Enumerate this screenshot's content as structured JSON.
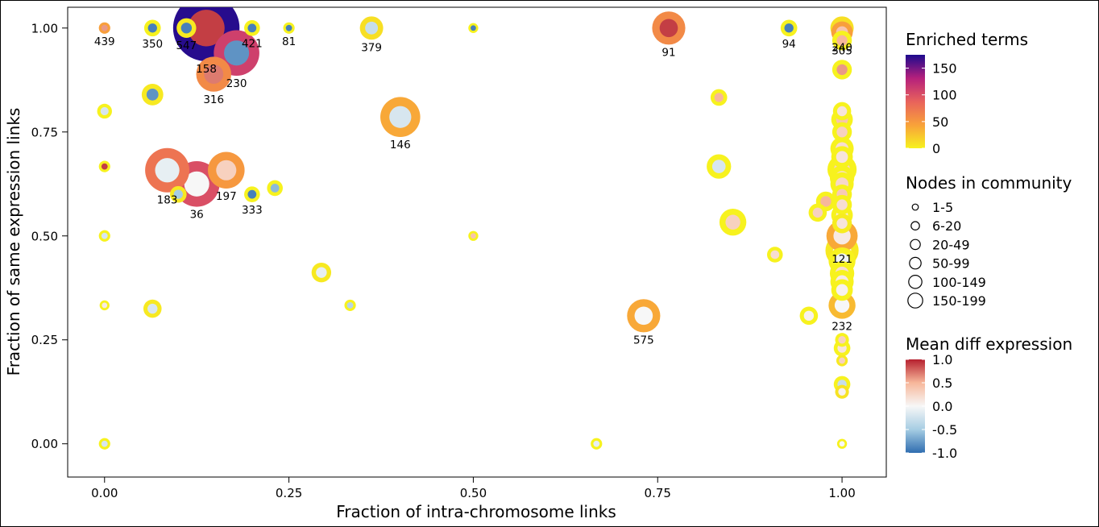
{
  "chart_data": {
    "type": "scatter",
    "xlabel": "Fraction of intra-chromosome links",
    "ylabel": "Fraction of same expression links",
    "xlim": [
      -0.05,
      1.06
    ],
    "ylim": [
      -0.08,
      1.05
    ],
    "x_ticks": [
      "0.00",
      "0.25",
      "0.50",
      "0.75",
      "1.00"
    ],
    "y_ticks": [
      "0.00",
      "0.25",
      "0.50",
      "0.75",
      "1.00"
    ],
    "grid": false,
    "legend_placement": "right",
    "encoding": {
      "ring_color": "Enriched terms",
      "size": "Nodes in community",
      "fill_color": "Mean diff expression"
    },
    "legend": {
      "enriched": {
        "title": "Enriched terms",
        "ticks": [
          "150",
          "100",
          "50",
          "0"
        ],
        "tick_values": [
          150,
          100,
          50,
          0
        ],
        "range": [
          0,
          175
        ]
      },
      "size": {
        "title": "Nodes in community",
        "entries": [
          "1-5",
          "6-20",
          "20-49",
          "50-99",
          "100-149",
          "150-199"
        ]
      },
      "diff": {
        "title": "Mean diff expression",
        "ticks": [
          "1.0",
          "0.5",
          "0.0",
          "-0.5",
          "-1.0"
        ],
        "tick_values": [
          1.0,
          0.5,
          0.0,
          -0.5,
          -1.0
        ],
        "range": [
          -1.0,
          1.0
        ]
      }
    },
    "points": [
      {
        "x": 0.138,
        "y": 1.0,
        "size": 178,
        "terms": 172,
        "diff": 0.9,
        "label": "158"
      },
      {
        "x": 0.0,
        "y": 1.0,
        "size": 3,
        "terms": 45,
        "diff": 0.6,
        "label": "439"
      },
      {
        "x": 0.065,
        "y": 1.0,
        "size": 8,
        "terms": 0,
        "diff": -0.9,
        "label": "350"
      },
      {
        "x": 0.111,
        "y": 1.0,
        "size": 12,
        "terms": 5,
        "diff": -0.9,
        "label": "547"
      },
      {
        "x": 0.2,
        "y": 1.0,
        "size": 7,
        "terms": 0,
        "diff": -0.9,
        "label": "421"
      },
      {
        "x": 0.25,
        "y": 1.0,
        "size": 3,
        "terms": 0,
        "diff": -0.9,
        "label": "81"
      },
      {
        "x": 0.362,
        "y": 1.0,
        "size": 18,
        "terms": 10,
        "diff": -0.3,
        "label": "379"
      },
      {
        "x": 0.5,
        "y": 1.0,
        "size": 2,
        "terms": 0,
        "diff": -0.9,
        "label": ""
      },
      {
        "x": 0.765,
        "y": 1.0,
        "size": 40,
        "terms": 60,
        "diff": 0.9,
        "label": "91"
      },
      {
        "x": 0.928,
        "y": 1.0,
        "size": 8,
        "terms": 0,
        "diff": -0.9,
        "label": "94"
      },
      {
        "x": 1.0,
        "y": 1.0,
        "size": 18,
        "terms": 10,
        "diff": -0.6,
        "label": "240"
      },
      {
        "x": 1.0,
        "y": 0.99,
        "size": 15,
        "terms": 45,
        "diff": 0.4,
        "label": "305"
      },
      {
        "x": 0.179,
        "y": 0.94,
        "size": 80,
        "terms": 110,
        "diff": -0.8,
        "label": "230"
      },
      {
        "x": 0.148,
        "y": 0.889,
        "size": 45,
        "terms": 60,
        "diff": 0.7,
        "label": "316"
      },
      {
        "x": 0.065,
        "y": 0.84,
        "size": 15,
        "terms": 5,
        "diff": -0.8,
        "label": ""
      },
      {
        "x": 0.0,
        "y": 0.8,
        "size": 6,
        "terms": 0,
        "diff": -0.2,
        "label": ""
      },
      {
        "x": 0.401,
        "y": 0.786,
        "size": 60,
        "terms": 40,
        "diff": -0.2,
        "label": "146"
      },
      {
        "x": 0.0,
        "y": 0.667,
        "size": 3,
        "terms": 0,
        "diff": 0.9,
        "label": ""
      },
      {
        "x": 0.085,
        "y": 0.658,
        "size": 75,
        "terms": 75,
        "diff": -0.1,
        "label": "183"
      },
      {
        "x": 0.125,
        "y": 0.625,
        "size": 80,
        "terms": 100,
        "diff": 0.0,
        "label": "36"
      },
      {
        "x": 0.1,
        "y": 0.6,
        "size": 8,
        "terms": 5,
        "diff": -0.5,
        "label": ""
      },
      {
        "x": 0.165,
        "y": 0.658,
        "size": 50,
        "terms": 50,
        "diff": 0.3,
        "label": "197"
      },
      {
        "x": 0.2,
        "y": 0.6,
        "size": 7,
        "terms": 0,
        "diff": -0.9,
        "label": "333"
      },
      {
        "x": 0.231,
        "y": 0.615,
        "size": 7,
        "terms": 0,
        "diff": -0.6,
        "label": ""
      },
      {
        "x": 0.0,
        "y": 0.5,
        "size": 3,
        "terms": 0,
        "diff": -0.2,
        "label": ""
      },
      {
        "x": 0.5,
        "y": 0.5,
        "size": 2,
        "terms": 0,
        "diff": 0.4,
        "label": ""
      },
      {
        "x": 0.294,
        "y": 0.412,
        "size": 12,
        "terms": 5,
        "diff": -0.1,
        "label": ""
      },
      {
        "x": 0.333,
        "y": 0.333,
        "size": 3,
        "terms": 0,
        "diff": -0.4,
        "label": ""
      },
      {
        "x": 0.0,
        "y": 0.333,
        "size": 2,
        "terms": 0,
        "diff": 0.1,
        "label": ""
      },
      {
        "x": 0.065,
        "y": 0.325,
        "size": 10,
        "terms": 5,
        "diff": -0.2,
        "label": ""
      },
      {
        "x": 0.0,
        "y": 0.0,
        "size": 3,
        "terms": 0,
        "diff": -0.2,
        "label": ""
      },
      {
        "x": 0.667,
        "y": 0.0,
        "size": 3,
        "terms": 0,
        "diff": -0.1,
        "label": ""
      },
      {
        "x": 0.731,
        "y": 0.308,
        "size": 40,
        "terms": 40,
        "diff": 0.0,
        "label": "575"
      },
      {
        "x": 0.833,
        "y": 0.833,
        "size": 8,
        "terms": 0,
        "diff": 0.5,
        "label": ""
      },
      {
        "x": 0.833,
        "y": 0.667,
        "size": 20,
        "terms": 0,
        "diff": -0.2,
        "label": ""
      },
      {
        "x": 0.852,
        "y": 0.533,
        "size": 25,
        "terms": 0,
        "diff": 0.3,
        "label": ""
      },
      {
        "x": 0.909,
        "y": 0.455,
        "size": 7,
        "terms": 0,
        "diff": 0.2,
        "label": ""
      },
      {
        "x": 0.955,
        "y": 0.308,
        "size": 10,
        "terms": 0,
        "diff": 0.05,
        "label": ""
      },
      {
        "x": 0.967,
        "y": 0.556,
        "size": 10,
        "terms": 0,
        "diff": 0.3,
        "label": ""
      },
      {
        "x": 0.978,
        "y": 0.583,
        "size": 12,
        "terms": 0,
        "diff": 0.5,
        "label": ""
      },
      {
        "x": 1.0,
        "y": 0.5,
        "size": 35,
        "terms": 40,
        "diff": 0.1,
        "label": "121"
      },
      {
        "x": 1.0,
        "y": 0.333,
        "size": 25,
        "terms": 30,
        "diff": 0.0,
        "label": "232"
      },
      {
        "x": 1.0,
        "y": 0.97,
        "size": 12,
        "terms": 0,
        "diff": 0.5,
        "label": ""
      },
      {
        "x": 1.0,
        "y": 0.9,
        "size": 12,
        "terms": 0,
        "diff": 0.6,
        "label": ""
      },
      {
        "x": 1.0,
        "y": 0.8,
        "size": 10,
        "terms": 0,
        "diff": 0.15,
        "label": ""
      },
      {
        "x": 1.0,
        "y": 0.78,
        "size": 15,
        "terms": 0,
        "diff": 0.4,
        "label": ""
      },
      {
        "x": 1.0,
        "y": 0.75,
        "size": 12,
        "terms": 0,
        "diff": 0.3,
        "label": ""
      },
      {
        "x": 1.0,
        "y": 0.71,
        "size": 18,
        "terms": 0,
        "diff": 0.2,
        "label": ""
      },
      {
        "x": 1.0,
        "y": 0.69,
        "size": 15,
        "terms": 0,
        "diff": 0.15,
        "label": ""
      },
      {
        "x": 1.0,
        "y": 0.66,
        "size": 30,
        "terms": 0,
        "diff": 0.3,
        "label": ""
      },
      {
        "x": 1.0,
        "y": 0.64,
        "size": 20,
        "terms": 0,
        "diff": 0.2,
        "label": ""
      },
      {
        "x": 1.0,
        "y": 0.625,
        "size": 18,
        "terms": 0,
        "diff": 0.25,
        "label": ""
      },
      {
        "x": 1.0,
        "y": 0.6,
        "size": 12,
        "terms": 0,
        "diff": 0.35,
        "label": ""
      },
      {
        "x": 1.0,
        "y": 0.575,
        "size": 12,
        "terms": 0,
        "diff": 0.2,
        "label": ""
      },
      {
        "x": 1.0,
        "y": 0.55,
        "size": 15,
        "terms": 0,
        "diff": 0.1,
        "label": ""
      },
      {
        "x": 1.0,
        "y": 0.53,
        "size": 12,
        "terms": 3,
        "diff": 0.15,
        "label": ""
      },
      {
        "x": 1.0,
        "y": 0.465,
        "size": 40,
        "terms": 5,
        "diff": 0.0,
        "label": ""
      },
      {
        "x": 1.0,
        "y": 0.44,
        "size": 25,
        "terms": 0,
        "diff": -0.05,
        "label": ""
      },
      {
        "x": 1.0,
        "y": 0.41,
        "size": 20,
        "terms": 0,
        "diff": 0.2,
        "label": ""
      },
      {
        "x": 1.0,
        "y": 0.39,
        "size": 18,
        "terms": 0,
        "diff": 0.1,
        "label": ""
      },
      {
        "x": 1.0,
        "y": 0.37,
        "size": 15,
        "terms": 0,
        "diff": 0.05,
        "label": ""
      },
      {
        "x": 1.0,
        "y": 0.25,
        "size": 5,
        "terms": 0,
        "diff": 0.3,
        "label": ""
      },
      {
        "x": 1.0,
        "y": 0.23,
        "size": 8,
        "terms": 0,
        "diff": 0.15,
        "label": ""
      },
      {
        "x": 1.0,
        "y": 0.2,
        "size": 3,
        "terms": 5,
        "diff": 0.3,
        "label": ""
      },
      {
        "x": 1.0,
        "y": 0.143,
        "size": 8,
        "terms": 0,
        "diff": -0.3,
        "label": ""
      },
      {
        "x": 1.0,
        "y": 0.125,
        "size": 5,
        "terms": 8,
        "diff": 0.05,
        "label": ""
      },
      {
        "x": 1.0,
        "y": 0.0,
        "size": 2,
        "terms": 0,
        "diff": 0.0,
        "label": ""
      }
    ]
  }
}
